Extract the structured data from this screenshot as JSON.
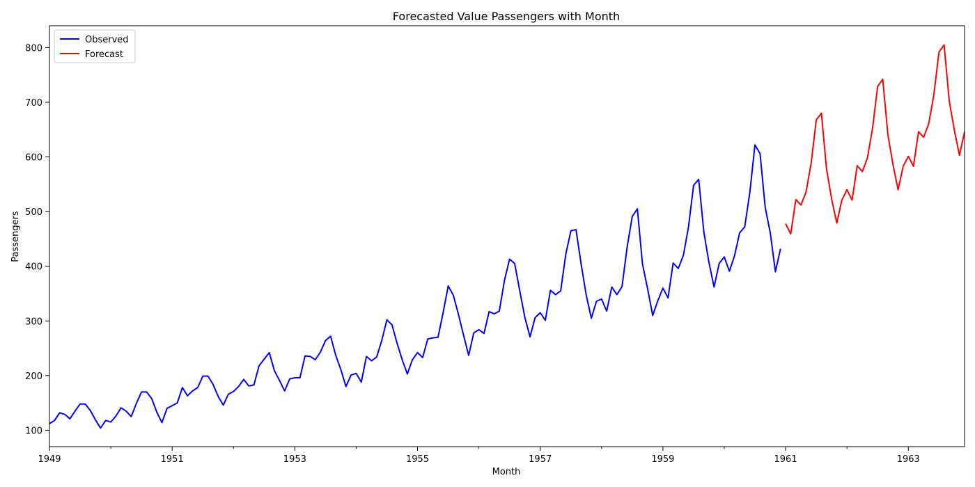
{
  "chart_data": {
    "type": "line",
    "title": "Forecasted Value Passengers with Month",
    "xlabel": "Month",
    "ylabel": "Passengers",
    "xlim": [
      1949.0,
      1963.9167
    ],
    "ylim": [
      70,
      840
    ],
    "x_ticks": [
      {
        "value": 1949,
        "label": "1949"
      },
      {
        "value": 1951,
        "label": "1951"
      },
      {
        "value": 1953,
        "label": "1953"
      },
      {
        "value": 1955,
        "label": "1955"
      },
      {
        "value": 1957,
        "label": "1957"
      },
      {
        "value": 1959,
        "label": "1959"
      },
      {
        "value": 1961,
        "label": "1961"
      },
      {
        "value": 1963,
        "label": "1963"
      }
    ],
    "y_ticks": [
      100,
      200,
      300,
      400,
      500,
      600,
      700,
      800
    ],
    "grid": false,
    "legend": "top-left",
    "series": [
      {
        "name": "Observed",
        "color": "#0000ff",
        "x_start": "1949-01",
        "frequency": "monthly",
        "values": [
          112,
          118,
          132,
          129,
          121,
          135,
          148,
          148,
          136,
          119,
          104,
          118,
          115,
          126,
          141,
          135,
          125,
          149,
          170,
          170,
          158,
          133,
          114,
          140,
          145,
          150,
          178,
          163,
          172,
          178,
          199,
          199,
          184,
          162,
          146,
          166,
          171,
          180,
          193,
          181,
          183,
          218,
          230,
          242,
          209,
          191,
          172,
          194,
          196,
          196,
          236,
          235,
          229,
          243,
          264,
          272,
          237,
          211,
          180,
          201,
          204,
          188,
          235,
          227,
          234,
          264,
          302,
          293,
          259,
          229,
          203,
          229,
          242,
          233,
          267,
          269,
          270,
          315,
          364,
          347,
          312,
          274,
          237,
          278,
          284,
          277,
          317,
          313,
          318,
          374,
          413,
          405,
          355,
          306,
          271,
          306,
          315,
          301,
          356,
          348,
          355,
          422,
          465,
          467,
          404,
          347,
          305,
          336,
          340,
          318,
          362,
          348,
          363,
          435,
          491,
          505,
          404,
          359,
          310,
          337,
          360,
          342,
          406,
          396,
          420,
          472,
          548,
          559,
          463,
          407,
          362,
          405,
          417,
          391,
          419,
          461,
          472,
          535,
          622,
          606,
          508,
          461,
          390,
          432
        ]
      },
      {
        "name": "Forecast",
        "color": "#ff0000",
        "x_start": "1961-01",
        "frequency": "monthly",
        "values": [
          478,
          459,
          522,
          512,
          536,
          589,
          668,
          680,
          578,
          523,
          479,
          521,
          540,
          521,
          584,
          573,
          598,
          652,
          729,
          742,
          641,
          586,
          540,
          583,
          601,
          583,
          646,
          636,
          661,
          714,
          792,
          805,
          703,
          649,
          603,
          646
        ]
      }
    ]
  }
}
